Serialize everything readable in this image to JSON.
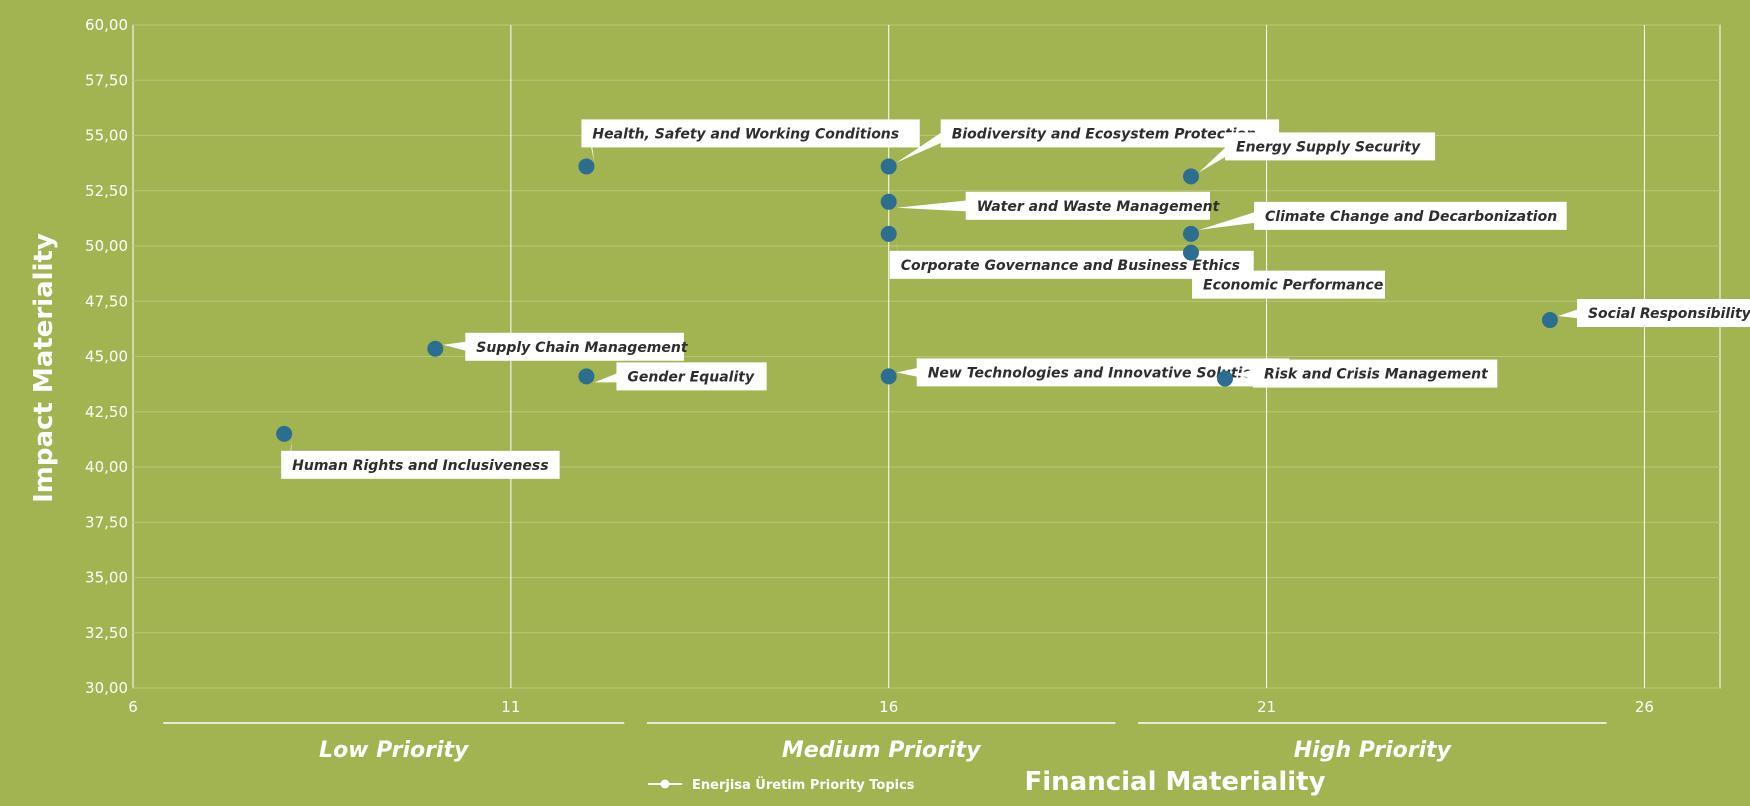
{
  "chart_data": {
    "type": "scatter",
    "xlabel": "Financial Materiality",
    "ylabel": "Impact Materiality",
    "xlim": [
      6,
      27
    ],
    "ylim": [
      30,
      60
    ],
    "xticks": [
      "6",
      "11",
      "16",
      "21",
      "26"
    ],
    "yticks": [
      "30,00",
      "32,50",
      "35,00",
      "37,50",
      "40,00",
      "42,50",
      "45,00",
      "47,50",
      "50,00",
      "52,50",
      "55,00",
      "57,50",
      "60,00"
    ],
    "legend": "Enerjisa Üretim Priority Topics",
    "legend_position": "bottom-left",
    "grid": true,
    "priority_bands": [
      {
        "label": "Low Priority",
        "x_from": 6.4,
        "x_to": 12.5
      },
      {
        "label": "Medium Priority",
        "x_from": 12.8,
        "x_to": 19.0
      },
      {
        "label": "High Priority",
        "x_from": 19.3,
        "x_to": 25.5
      }
    ],
    "series": [
      {
        "name": "Enerjisa Üretim Priority Topics",
        "color": "#2c6e8f",
        "points": [
          {
            "label": "Human Rights and Inclusiveness",
            "x": 8.0,
            "y": 41.5
          },
          {
            "label": "Supply Chain Management",
            "x": 10.0,
            "y": 45.35
          },
          {
            "label": "Gender Equality",
            "x": 12.0,
            "y": 44.1
          },
          {
            "label": "Health, Safety and Working Conditions",
            "x": 12.0,
            "y": 53.6
          },
          {
            "label": "Biodiversity and Ecosystem Protection",
            "x": 16.0,
            "y": 53.6
          },
          {
            "label": "Water and Waste Management",
            "x": 16.0,
            "y": 52.0
          },
          {
            "label": "Corporate Governance and Business Ethics",
            "x": 16.0,
            "y": 50.55
          },
          {
            "label": "New Technologies and Innovative Solutions",
            "x": 16.0,
            "y": 44.1
          },
          {
            "label": "Energy Supply Security",
            "x": 20.0,
            "y": 53.15
          },
          {
            "label": "Climate Change and Decarbonization",
            "x": 20.0,
            "y": 50.55
          },
          {
            "label": "Economic Performance",
            "x": 20.0,
            "y": 49.7
          },
          {
            "label": "Risk and Crisis Management",
            "x": 20.45,
            "y": 44.0
          },
          {
            "label": "Social Responsibility",
            "x": 24.75,
            "y": 46.65
          }
        ]
      }
    ]
  }
}
